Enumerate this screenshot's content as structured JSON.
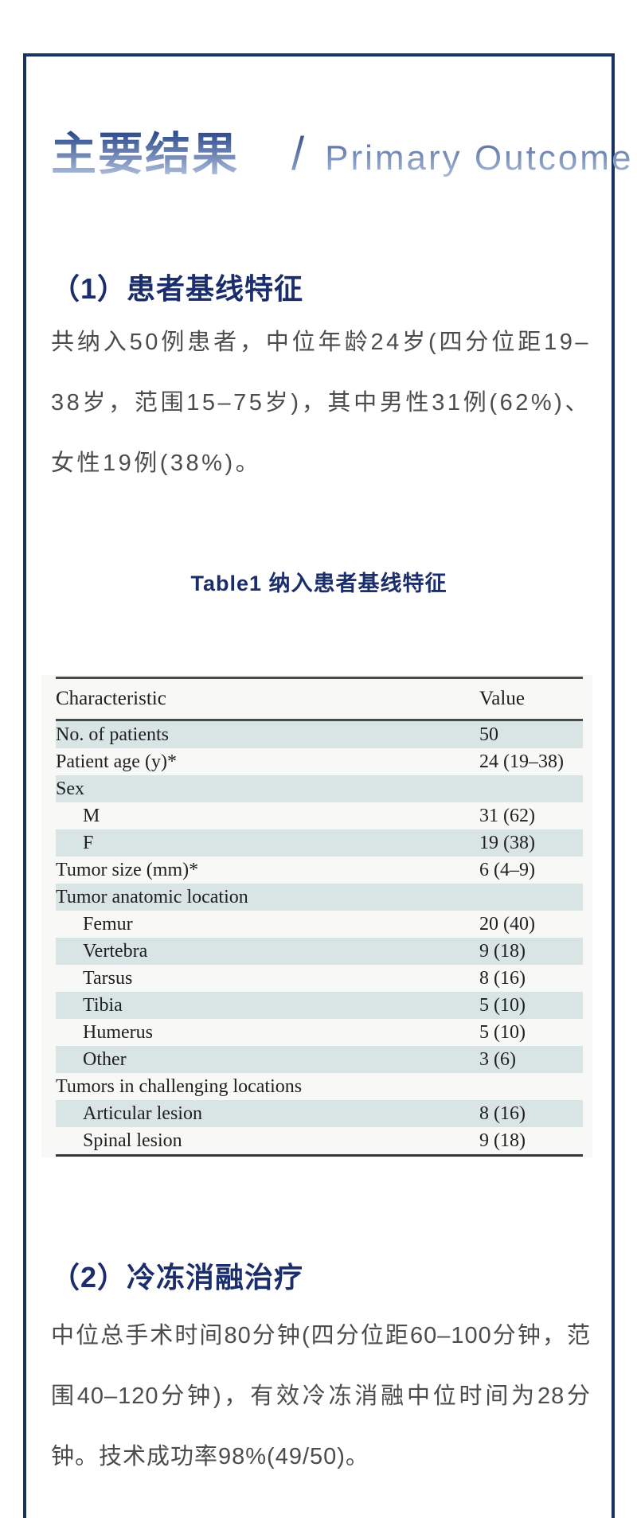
{
  "header": {
    "title_cn": "主要结果",
    "divider": "/",
    "title_en": "Primary Outcome"
  },
  "section1": {
    "heading": "（1）患者基线特征",
    "body": "共纳入50例患者，中位年龄24岁(四分位距19–38岁，范围15–75岁)，其中男性31例(62%)、女性19例(38%)。"
  },
  "table": {
    "caption": "Table1 纳入患者基线特征",
    "columns": [
      "Characteristic",
      "Value"
    ],
    "rows": [
      {
        "label": "No. of patients",
        "value": "50",
        "indent": false,
        "shaded": true
      },
      {
        "label": "Patient age (y)*",
        "value": "24 (19–38)",
        "indent": false,
        "shaded": false
      },
      {
        "label": "Sex",
        "value": "",
        "indent": false,
        "shaded": true
      },
      {
        "label": "M",
        "value": "31 (62)",
        "indent": true,
        "shaded": false
      },
      {
        "label": "F",
        "value": "19 (38)",
        "indent": true,
        "shaded": true
      },
      {
        "label": "Tumor size (mm)*",
        "value": "6 (4–9)",
        "indent": false,
        "shaded": false
      },
      {
        "label": "Tumor anatomic location",
        "value": "",
        "indent": false,
        "shaded": true
      },
      {
        "label": "Femur",
        "value": "20 (40)",
        "indent": true,
        "shaded": false
      },
      {
        "label": "Vertebra",
        "value": "9 (18)",
        "indent": true,
        "shaded": true
      },
      {
        "label": "Tarsus",
        "value": "8 (16)",
        "indent": true,
        "shaded": false
      },
      {
        "label": "Tibia",
        "value": "5 (10)",
        "indent": true,
        "shaded": true
      },
      {
        "label": "Humerus",
        "value": "5 (10)",
        "indent": true,
        "shaded": false
      },
      {
        "label": "Other",
        "value": "3 (6)",
        "indent": true,
        "shaded": true
      },
      {
        "label": "Tumors in challenging locations",
        "value": "",
        "indent": false,
        "shaded": false
      },
      {
        "label": "Articular lesion",
        "value": "8 (16)",
        "indent": true,
        "shaded": true
      },
      {
        "label": "Spinal lesion",
        "value": "9 (18)",
        "indent": true,
        "shaded": false
      }
    ]
  },
  "section2": {
    "heading": "（2）冷冻消融治疗",
    "body": "中位总手术时间80分钟(四分位距60–100分钟，范围40–120分钟)，有效冷冻消融中位时间为28分钟。技术成功率98%(49/50)。"
  },
  "colors": {
    "frame_border": "#1a3263",
    "heading_navy": "#1b2d6b",
    "title_gradient_top": "#2c4a8c",
    "title_gradient_bottom": "#b8c6e0",
    "body_text": "#4c4c4c",
    "table_background": "#f8f8f6",
    "table_row_shade": "#d9e5e4",
    "table_rule": "#4a4a4a"
  }
}
